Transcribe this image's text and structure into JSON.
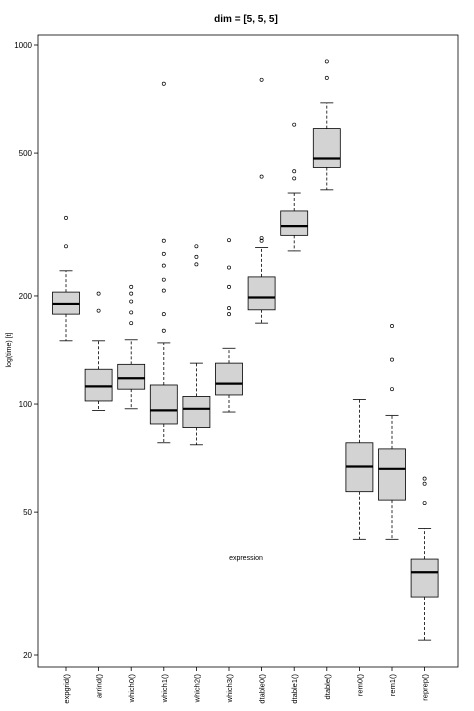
{
  "chart_data": {
    "type": "boxplot",
    "title": "dim = [5, 5, 5]",
    "xlabel": "expression",
    "ylabel": "log(time) [t]",
    "y_scale": "log",
    "ylim": [
      19,
      1050
    ],
    "y_ticks": [
      20,
      50,
      100,
      200,
      500,
      1000
    ],
    "box_fill": "#d3d3d3",
    "categories": [
      "expgrid()",
      "arrind()",
      "which0()",
      "which1()",
      "which2()",
      "which3()",
      "dtable0()",
      "dtable1()",
      "dtable()",
      "rem0()",
      "rem1()",
      "reprep()"
    ],
    "boxes": [
      {
        "category": "expgrid()",
        "lower_whisker": 150,
        "q1": 178,
        "median": 190,
        "q3": 205,
        "upper_whisker": 235,
        "outliers": [
          275,
          330
        ]
      },
      {
        "category": "arrind()",
        "lower_whisker": 96,
        "q1": 102,
        "median": 112,
        "q3": 125,
        "upper_whisker": 150,
        "outliers": [
          182,
          203
        ]
      },
      {
        "category": "which0()",
        "lower_whisker": 97,
        "q1": 110,
        "median": 118,
        "q3": 129,
        "upper_whisker": 151,
        "outliers": [
          168,
          180,
          193,
          203,
          212
        ]
      },
      {
        "category": "which1()",
        "lower_whisker": 78,
        "q1": 88,
        "median": 96,
        "q3": 113,
        "upper_whisker": 148,
        "outliers": [
          160,
          178,
          207,
          222,
          243,
          262,
          285,
          780
        ]
      },
      {
        "category": "which2()",
        "lower_whisker": 77,
        "q1": 86,
        "median": 97,
        "q3": 105,
        "upper_whisker": 130,
        "outliers": [
          245,
          257,
          275
        ]
      },
      {
        "category": "which3()",
        "lower_whisker": 95,
        "q1": 106,
        "median": 114,
        "q3": 130,
        "upper_whisker": 143,
        "outliers": [
          178,
          185,
          212,
          240,
          286
        ]
      },
      {
        "category": "dtable0()",
        "lower_whisker": 168,
        "q1": 183,
        "median": 198,
        "q3": 226,
        "upper_whisker": 273,
        "outliers": [
          285,
          290,
          430,
          800
        ]
      },
      {
        "category": "dtable1()",
        "lower_whisker": 267,
        "q1": 295,
        "median": 313,
        "q3": 345,
        "upper_whisker": 387,
        "outliers": [
          425,
          445,
          600
        ]
      },
      {
        "category": "dtable()",
        "lower_whisker": 395,
        "q1": 456,
        "median": 483,
        "q3": 585,
        "upper_whisker": 690,
        "outliers": [
          810,
          900
        ]
      },
      {
        "category": "rem0()",
        "lower_whisker": 42,
        "q1": 57,
        "median": 67,
        "q3": 78,
        "upper_whisker": 103,
        "outliers": []
      },
      {
        "category": "rem1()",
        "lower_whisker": 42,
        "q1": 54,
        "median": 66,
        "q3": 75,
        "upper_whisker": 93,
        "outliers": [
          110,
          133,
          165
        ]
      },
      {
        "category": "reprep()",
        "lower_whisker": 22,
        "q1": 29,
        "median": 34,
        "q3": 37,
        "upper_whisker": 45,
        "outliers": [
          53,
          60,
          62
        ]
      }
    ]
  }
}
